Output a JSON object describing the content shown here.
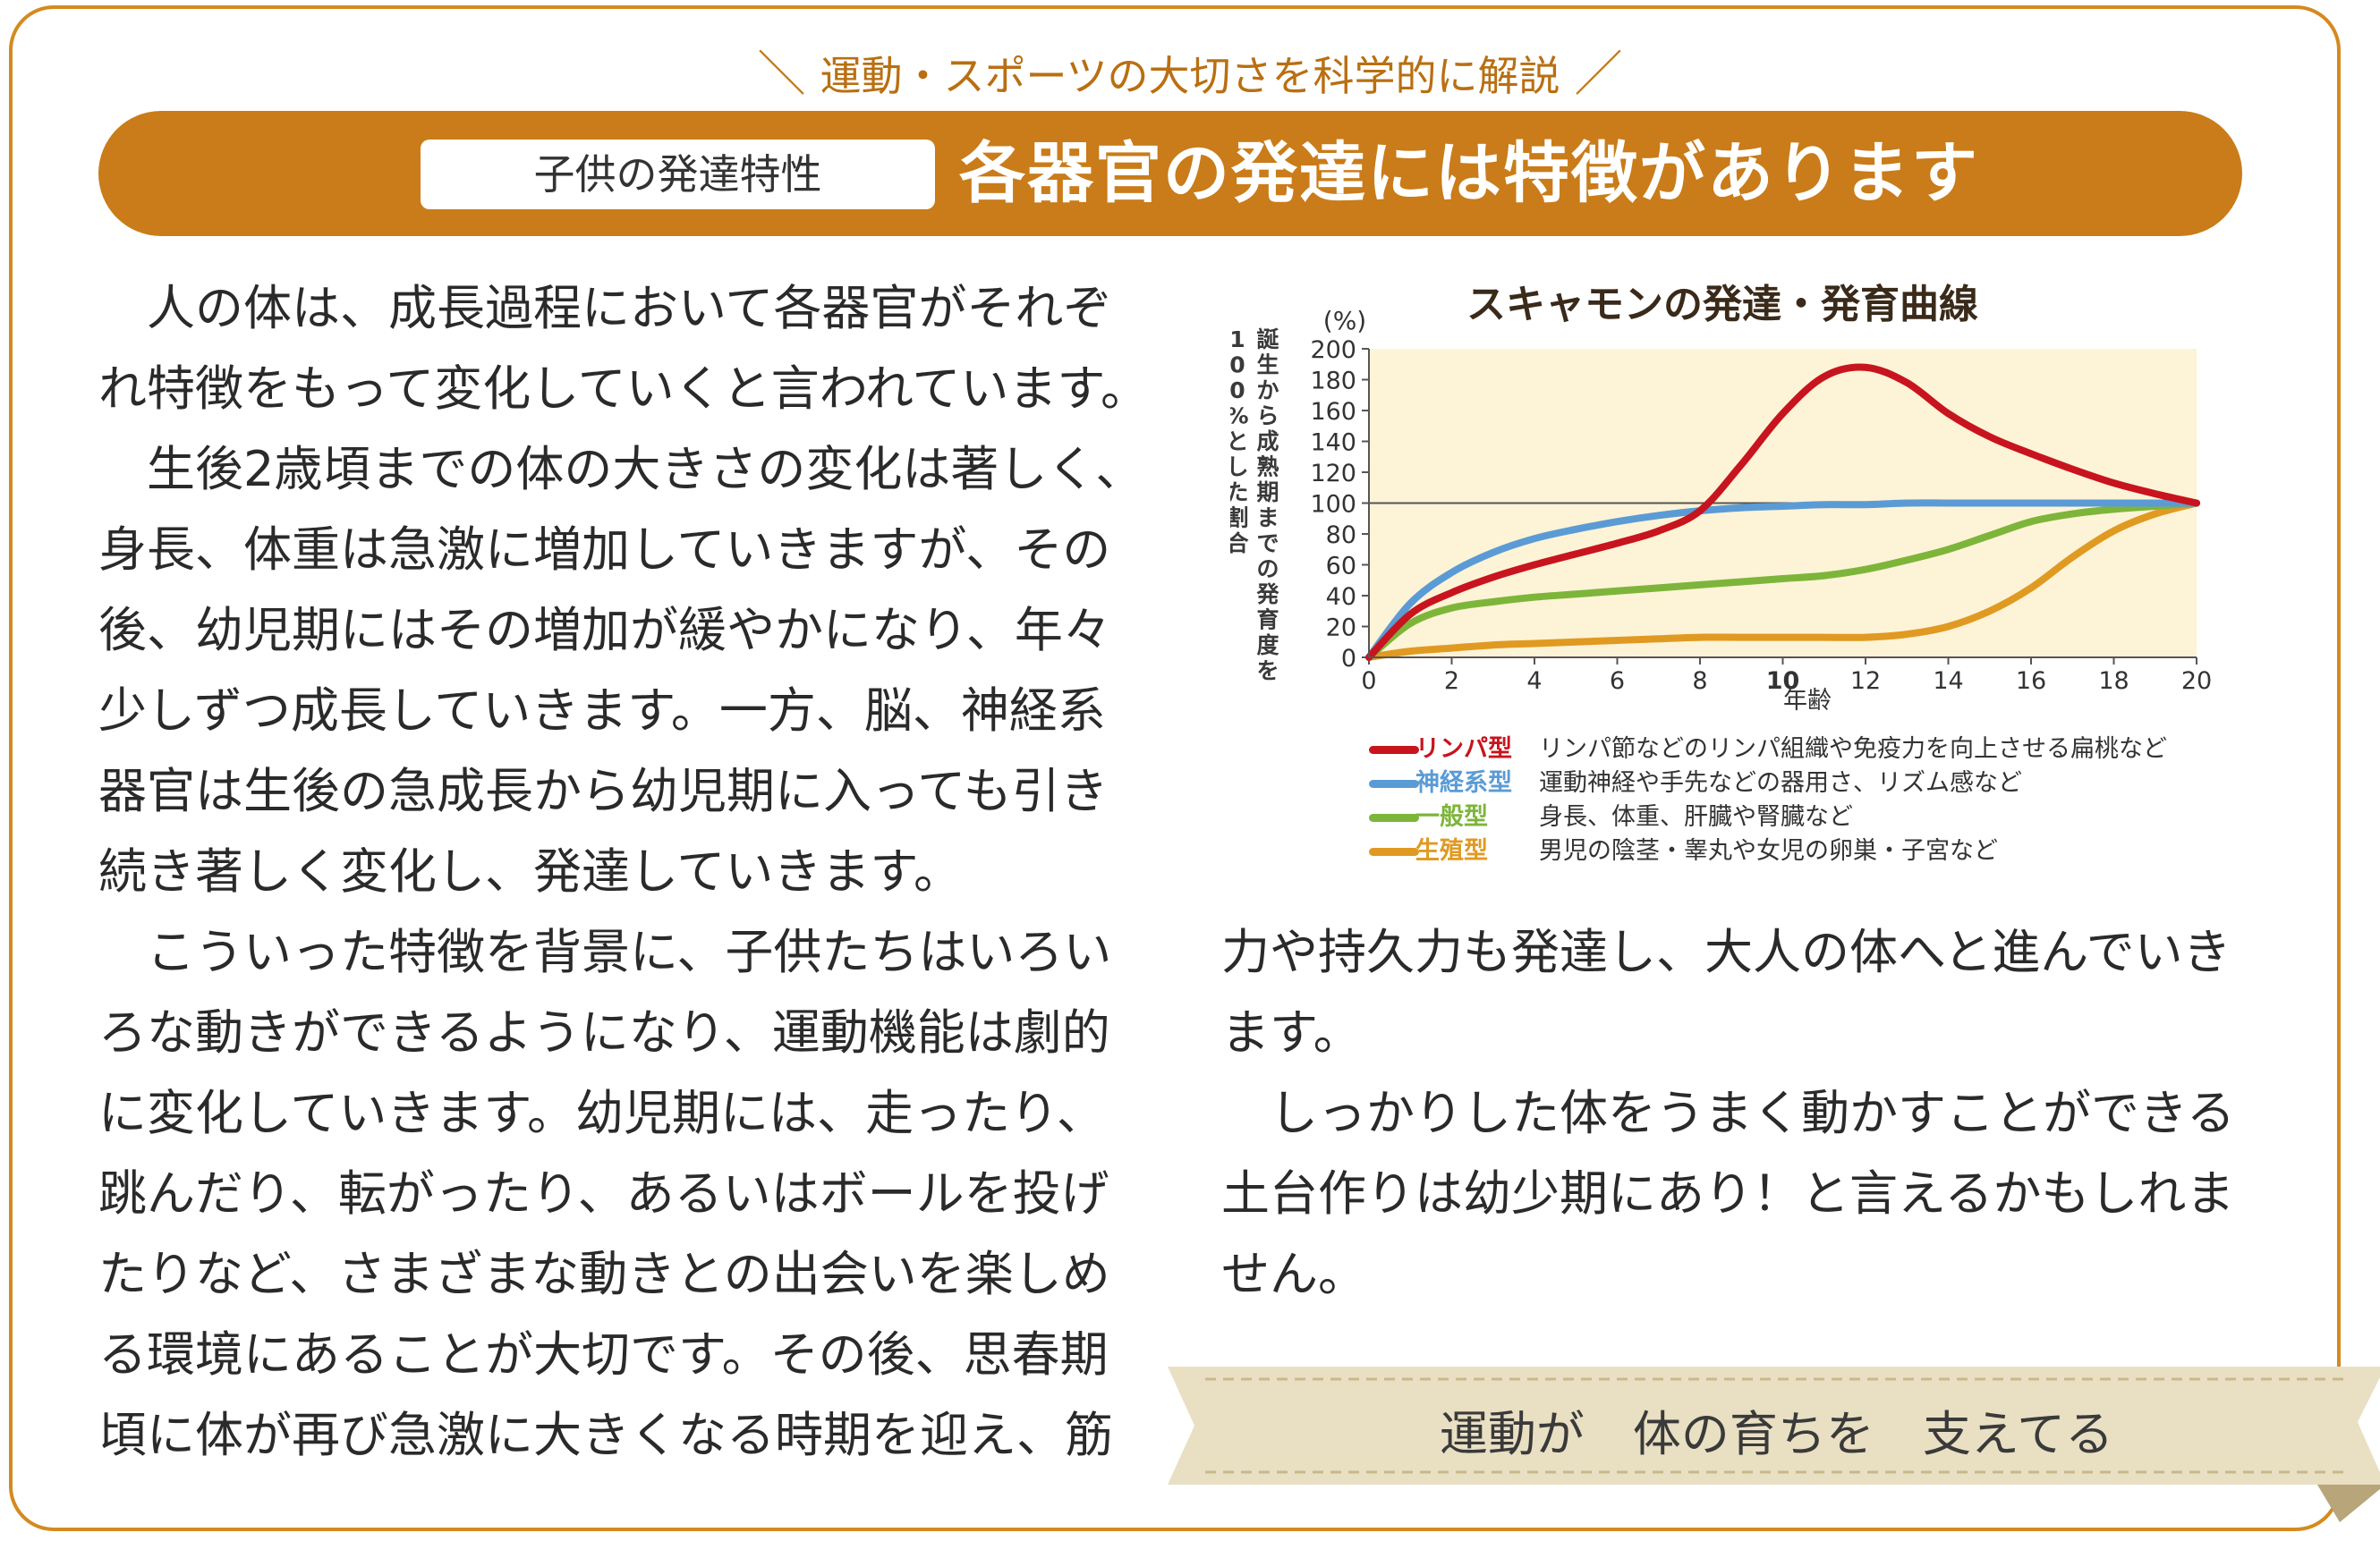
{
  "header": {
    "tagline": "運動・スポーツの大切さを科学的に解説",
    "label": "子供の発達特性",
    "title": "各器官の発達には特徴があります"
  },
  "body": {
    "para1": [
      "　人の体は、成長過程において各器官がそれぞ",
      "れ特徴をもって変化していくと言われています。"
    ],
    "para2": [
      "　生後2歳頃までの体の大きさの変化は著しく、",
      "身長、体重は急激に増加していきますが、その",
      "後、幼児期にはその増加が緩やかになり、年々",
      "少しずつ成長していきます。一方、脳、神経系",
      "器官は生後の急成長から幼児期に入っても引き",
      "続き著しく変化し、発達していきます。"
    ],
    "para3": [
      "　こういった特徴を背景に、子供たちはいろい",
      "ろな動きができるようになり、運動機能は劇的",
      "に変化していきます。幼児期には、走ったり、",
      "跳んだり、転がったり、あるいはボールを投げ",
      "たりなど、さまざまな動きとの出会いを楽しめ",
      "る環境にあることが大切です。その後、思春期",
      "頃に体が再び急激に大きくなる時期を迎え、筋"
    ],
    "para4": [
      "力や持久力も発達し、大人の体へと進んでいき",
      "ます。"
    ],
    "para5": [
      "　しっかりした体をうまく動かすことができる",
      "土台作りは幼少期にあり！と言えるかもしれま",
      "せん。"
    ]
  },
  "footer": {
    "ribbon_text": "運動が　体の育ちを　支えてる"
  },
  "colors": {
    "accent": "#c97c19",
    "frame": "#d48a1f",
    "plot_bg": "#fdf3d7",
    "lymph": "#c8141e",
    "neural": "#5b9bd5",
    "general": "#7db53a",
    "reproductive": "#e09a22"
  },
  "chart_data": {
    "type": "line",
    "title": "スキャモンの発達・発育曲線",
    "ylabel": "誕生から成熟期までの発育度を100%とした割合",
    "yunit": "(%)",
    "xlabel": "年齢",
    "xlim": [
      0,
      20
    ],
    "ylim": [
      0,
      200
    ],
    "xticks": [
      0,
      2,
      4,
      6,
      8,
      10,
      12,
      14,
      16,
      18,
      20
    ],
    "yticks": [
      0,
      20,
      40,
      60,
      80,
      100,
      120,
      140,
      160,
      180,
      200
    ],
    "reference_line": 100,
    "grid": false,
    "legend_position": "bottom",
    "x": [
      0,
      1,
      2,
      3,
      4,
      5,
      6,
      7,
      8,
      9,
      10,
      11,
      12,
      13,
      14,
      15,
      16,
      17,
      18,
      19,
      20
    ],
    "series": [
      {
        "name": "リンパ型",
        "description": "リンパ節などのリンパ組織や免疫力を向上させる扁桃など",
        "color": "#c8141e",
        "values": [
          0,
          28,
          42,
          52,
          60,
          67,
          74,
          82,
          95,
          125,
          158,
          182,
          188,
          178,
          158,
          143,
          132,
          122,
          113,
          106,
          100
        ]
      },
      {
        "name": "神経系型",
        "description": "運動神経や手先などの器用さ、リズム感など",
        "color": "#5b9bd5",
        "values": [
          0,
          35,
          55,
          68,
          77,
          83,
          88,
          92,
          95,
          97,
          98,
          99,
          99,
          100,
          100,
          100,
          100,
          100,
          100,
          100,
          100
        ]
      },
      {
        "name": "一般型",
        "description": "身長、体重、肝臓や腎臓など",
        "color": "#7db53a",
        "values": [
          0,
          22,
          32,
          36,
          39,
          41,
          43,
          45,
          47,
          49,
          51,
          53,
          57,
          63,
          70,
          79,
          88,
          93,
          96,
          98,
          100
        ]
      },
      {
        "name": "生殖型",
        "description": "男児の陰茎・睾丸や女児の卵巣・子宮など",
        "color": "#e09a22",
        "values": [
          0,
          4,
          6,
          8,
          9,
          10,
          11,
          12,
          13,
          13,
          13,
          13,
          13,
          15,
          20,
          30,
          45,
          65,
          82,
          93,
          100
        ]
      }
    ]
  }
}
